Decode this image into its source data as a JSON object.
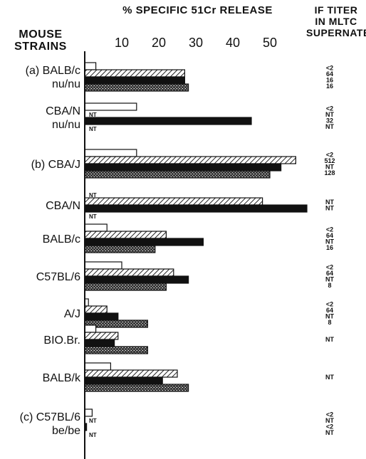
{
  "header": {
    "strains_heading": "MOUSE STRAINS",
    "axis_title": "% SPECIFIC 51Cr RELEASE",
    "titer_heading_lines": [
      "IF TITER",
      "IN MLTC",
      "SUPERNATES"
    ]
  },
  "chart_data": {
    "type": "bar",
    "orientation": "horizontal",
    "xlabel": "% SPECIFIC 51Cr RELEASE",
    "xlim": [
      0,
      60
    ],
    "x_ticks": [
      "10",
      "20",
      "30",
      "40",
      "50"
    ],
    "series": [
      {
        "pattern": "open",
        "color": "#ffffff"
      },
      {
        "pattern": "hatched",
        "color": "#333333"
      },
      {
        "pattern": "solid",
        "color": "#111111"
      },
      {
        "pattern": "stippled",
        "color": "#555555"
      }
    ],
    "groups": [
      {
        "label_lines": [
          "(a) BALB/c",
          "nu/nu"
        ],
        "values": [
          3,
          27,
          27,
          28
        ],
        "titers": [
          "<2",
          "64",
          "16",
          "16"
        ]
      },
      {
        "label_lines": [
          "CBA/N",
          "nu/nu"
        ],
        "values": [
          14,
          null,
          45,
          null
        ],
        "bar_labels": [
          "",
          "NT",
          "",
          "NT"
        ],
        "titers": [
          "<2",
          "NT",
          "32",
          "NT"
        ]
      },
      {
        "label_lines": [
          "(b) CBA/J"
        ],
        "values": [
          14,
          57,
          53,
          50
        ],
        "titers": [
          "<2",
          "512",
          "NT",
          "128"
        ]
      },
      {
        "label_lines": [
          "CBA/N"
        ],
        "values": [
          null,
          48,
          60,
          null
        ],
        "bar_labels": [
          "NT",
          "",
          "",
          "NT"
        ],
        "titers": [
          "NT",
          "NT"
        ]
      },
      {
        "label_lines": [
          "BALB/c"
        ],
        "values": [
          6,
          22,
          32,
          19
        ],
        "titers": [
          "<2",
          "64",
          "NT",
          "16"
        ]
      },
      {
        "label_lines": [
          "C57BL/6"
        ],
        "values": [
          10,
          24,
          28,
          22
        ],
        "titers": [
          "<2",
          "64",
          "NT",
          "8"
        ]
      },
      {
        "label_lines": [
          "A/J"
        ],
        "values": [
          1,
          6,
          9,
          17
        ],
        "titers": [
          "<2",
          "64",
          "NT",
          "8"
        ]
      },
      {
        "label_lines": [
          "BIO.Br."
        ],
        "values": [
          3,
          9,
          8,
          17
        ],
        "titers": [
          "NT"
        ]
      },
      {
        "label_lines": [
          "BALB/k"
        ],
        "values": [
          7,
          25,
          21,
          28
        ],
        "titers": [
          "NT"
        ]
      },
      {
        "label_lines": [
          "(c) C57BL/6",
          "be/be"
        ],
        "values": [
          2,
          null,
          0.5,
          null
        ],
        "bar_labels": [
          "",
          "NT",
          "",
          "NT"
        ],
        "titers": [
          "<2",
          "NT",
          "<2",
          "NT"
        ]
      }
    ]
  }
}
